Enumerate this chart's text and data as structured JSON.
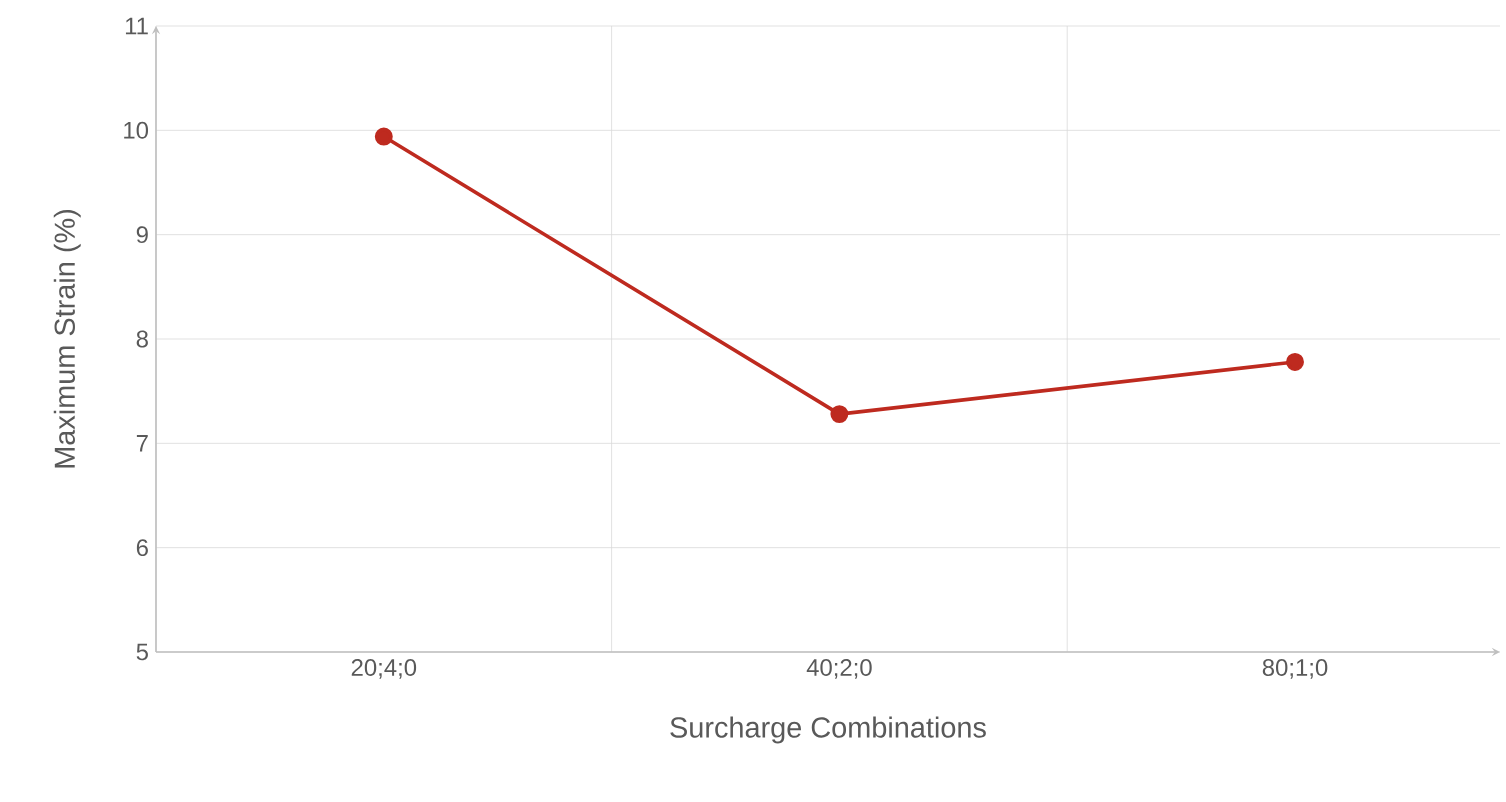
{
  "chart_data": {
    "type": "line",
    "xlabel": "Surcharge Combinations",
    "ylabel": "Maximum Strain (%)",
    "categories": [
      "20;4;0",
      "40;2;0",
      "80;1;0"
    ],
    "series": [
      {
        "color": "#be2a1f",
        "values": [
          9.94,
          7.28,
          7.78
        ]
      }
    ],
    "ylim": [
      5,
      11
    ],
    "yticks": [
      5,
      6,
      7,
      8,
      9,
      10,
      11
    ],
    "grid": true,
    "marker": "circle",
    "line_style": "solid",
    "legend": false
  }
}
